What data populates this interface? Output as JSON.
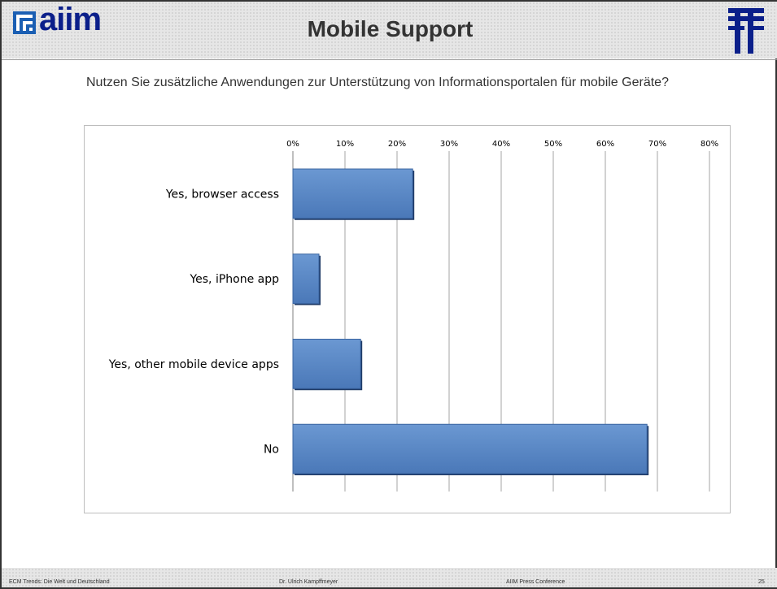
{
  "header": {
    "logo_text": "aiim",
    "title": "Mobile Support"
  },
  "question": "Nutzen Sie zusätzliche Anwendungen zur Unterstützung von Informationsportalen für mobile Geräte?",
  "chart_data": {
    "type": "bar",
    "orientation": "horizontal",
    "categories": [
      "Yes, browser access",
      "Yes, iPhone app",
      "Yes, other mobile device apps",
      "No"
    ],
    "values": [
      23,
      5,
      13,
      68
    ],
    "xlim": [
      0,
      80
    ],
    "ticks": [
      "0%",
      "10%",
      "20%",
      "30%",
      "40%",
      "50%",
      "60%",
      "70%",
      "80%"
    ],
    "axis_position": "top",
    "grid": true,
    "bar_color": "#4f81bd",
    "bar_edge_color": "#1f3a66"
  },
  "footer": {
    "left": "ECM Trends: Die Welt und Deutschland",
    "center": "Dr. Ulrich Kampffmeyer",
    "right": "AIIM Press Conference",
    "page": "25"
  }
}
